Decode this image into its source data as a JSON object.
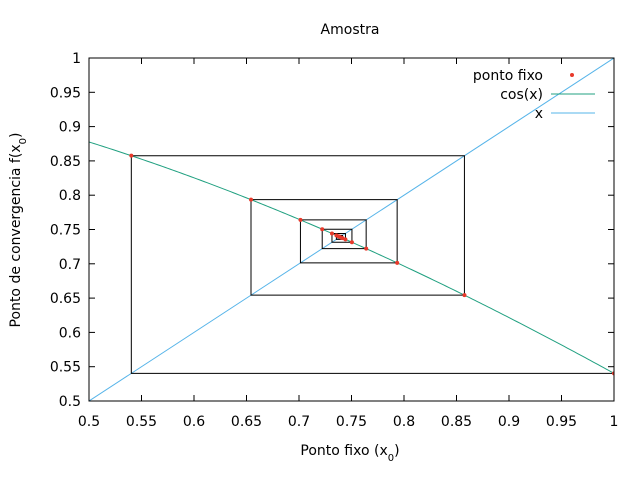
{
  "chart_data": {
    "type": "line",
    "title": "Amostra",
    "xlabel": {
      "main": "Ponto fixo (x",
      "sub": "0",
      "tail": ")"
    },
    "ylabel": {
      "main": "Ponto de convergencia f(x",
      "sub": "0",
      "tail": ")"
    },
    "xlim": [
      0.5,
      1.0
    ],
    "ylim": [
      0.5,
      1.0
    ],
    "xticks": [
      "0.5",
      "0.55",
      "0.6",
      "0.65",
      "0.7",
      "0.75",
      "0.8",
      "0.85",
      "0.9",
      "0.95",
      "1"
    ],
    "yticks": [
      "0.5",
      "0.55",
      "0.6",
      "0.65",
      "0.7",
      "0.75",
      "0.8",
      "0.85",
      "0.9",
      "0.95",
      "1"
    ],
    "grid": false,
    "legend_position": "top-right",
    "colors": {
      "points": "#e8392b",
      "cos": "#20a080",
      "identity": "#56b4e9",
      "cobweb": "#000000"
    },
    "series": [
      {
        "name": "ponto fixo",
        "style": "points",
        "x": [
          1.0,
          0.5403,
          0.8576,
          0.6543,
          0.7935,
          0.7014,
          0.764,
          0.7221,
          0.7504,
          0.7314,
          0.7442,
          0.7356,
          0.7414,
          0.7375,
          0.7401,
          0.7384
        ],
        "y": [
          0.5403,
          0.8576,
          0.6543,
          0.7935,
          0.7014,
          0.764,
          0.7221,
          0.7504,
          0.7314,
          0.7442,
          0.7356,
          0.7414,
          0.7375,
          0.7401,
          0.7384,
          0.7395
        ]
      },
      {
        "name": "cos(x)",
        "style": "function",
        "fn": "cos"
      },
      {
        "name": "x",
        "style": "function",
        "fn": "identity"
      }
    ],
    "cobweb": {
      "x0": 1.0,
      "iterations": 15,
      "start_y": 1.0
    }
  }
}
